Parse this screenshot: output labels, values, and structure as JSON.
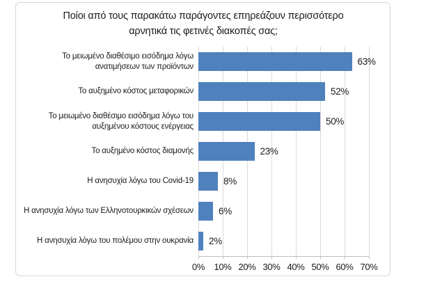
{
  "chart_data": {
    "type": "bar",
    "orientation": "horizontal",
    "title": "Ποίοι από τους παρακάτω παράγοντες επηρεάζουν περισσότερο αρνητικά τις φετινές διακοπές σας;",
    "categories": [
      "Το μειωμένο διαθέσιμο εισόδημα λόγω ανατιμήσεων των προϊόντων",
      "Το αυξημένο κόστος μεταφορικών",
      "Το μειωμένο διαθέσιμο εισόδημα λόγω του αυξημένου κόστους ενέργειας",
      "Το αυξημένο κόστος διαμονής",
      "Η ανησυχία λόγω του Covid-19",
      "Η ανησυχία λόγω των Ελληνοτουρκικών σχέσεων",
      "Η ανησυχία λόγω του πολέμου στην ουκρανία"
    ],
    "values": [
      63,
      52,
      50,
      23,
      8,
      6,
      2
    ],
    "value_labels": [
      "63%",
      "52%",
      "50%",
      "23%",
      "8%",
      "6%",
      "2%"
    ],
    "x_ticks": [
      "0%",
      "10%",
      "20%",
      "30%",
      "40%",
      "50%",
      "60%",
      "70%"
    ],
    "xlim": [
      0,
      70
    ],
    "grid": "vertical",
    "legend": "none",
    "bar_color": "#4F81BD",
    "gridline_color": "#D9D9D9",
    "axis_line_color": "#BFBFBF",
    "text_color": "#1A1A1A"
  }
}
